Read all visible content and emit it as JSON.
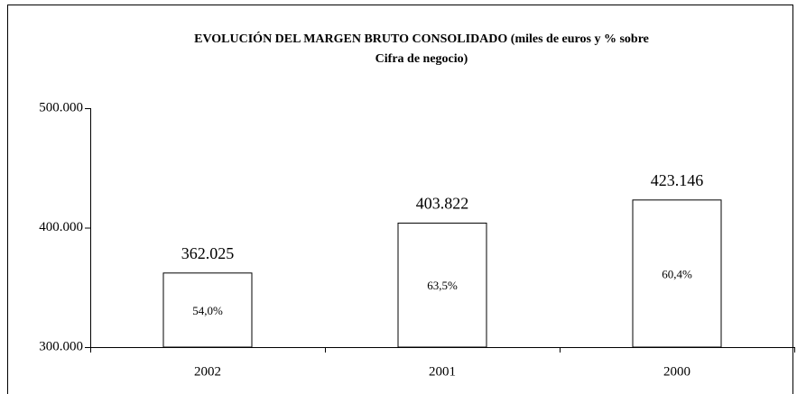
{
  "chart_data": {
    "type": "bar",
    "title_lines": [
      "EVOLUCIÓN DEL MARGEN BRUTO CONSOLIDADO (miles de euros y % sobre",
      "Cifra de negocio)"
    ],
    "categories": [
      "2002",
      "2001",
      "2000"
    ],
    "values": [
      362025,
      403822,
      423146
    ],
    "value_labels": [
      "362.025",
      "403.822",
      "423.146"
    ],
    "shares": [
      54.0,
      63.5,
      60.4
    ],
    "share_labels": [
      "54,0%",
      "63,5%",
      "60,4%"
    ],
    "color": "#ffffff",
    "ylim": [
      300000,
      500000
    ],
    "yticks": [
      {
        "value": 300000,
        "label": "300.000"
      },
      {
        "value": 400000,
        "label": "400.000"
      },
      {
        "value": 500000,
        "label": "500.000"
      }
    ],
    "grid": false
  }
}
